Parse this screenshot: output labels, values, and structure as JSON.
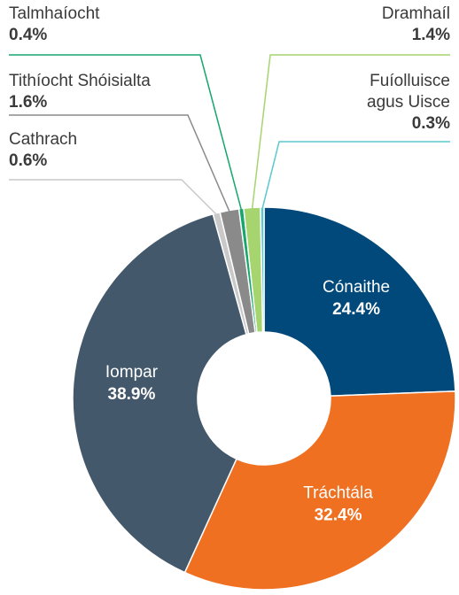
{
  "chart_data": {
    "type": "pie",
    "categories": [
      "Cónaithe",
      "Tráchtála",
      "Iompar",
      "Cathrach",
      "Tithíocht Shóisialta",
      "Talmhaíocht",
      "Dramhaíl",
      "Fuíolluisce agus Uisce"
    ],
    "values": [
      24.4,
      32.4,
      38.9,
      0.6,
      1.6,
      0.4,
      1.4,
      0.3
    ],
    "value_labels": [
      "24.4%",
      "32.4%",
      "38.9%",
      "0.6%",
      "1.6%",
      "0.4%",
      "1.4%",
      "0.3%"
    ],
    "colors": [
      "#00497a",
      "#f07022",
      "#44586b",
      "#c9c9c9",
      "#8a8a8a",
      "#16a66e",
      "#a6d46f",
      "#5bc8d0"
    ]
  }
}
